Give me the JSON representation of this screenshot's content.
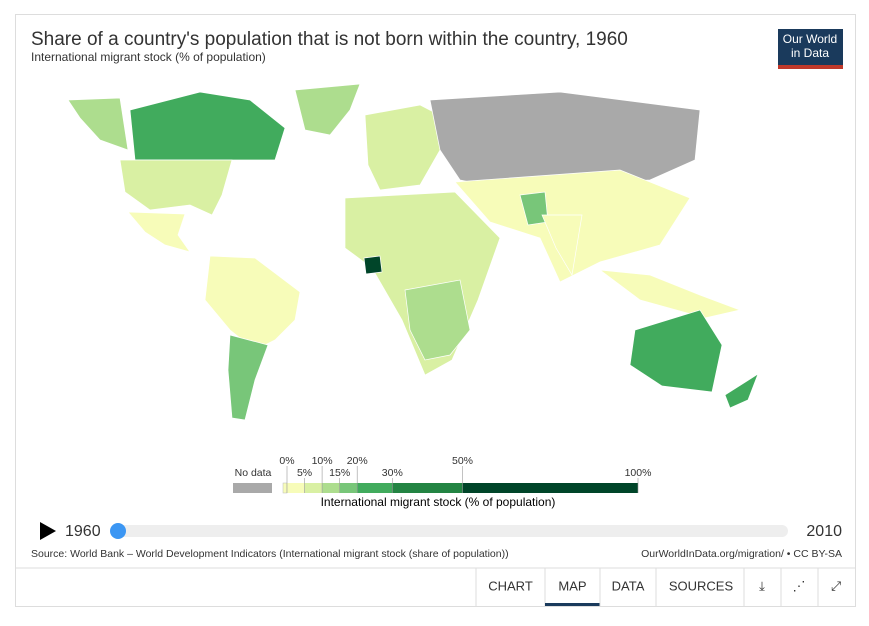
{
  "header": {
    "title": "Share of a country's population that is not born within the country, 1960",
    "subtitle": "International migrant stock (% of population)"
  },
  "logo": [
    "Our World",
    "in Data"
  ],
  "legend": {
    "no_data": "No data",
    "title": "International migrant stock (% of population)",
    "ticks": [
      {
        "value": 0,
        "label": "0%"
      },
      {
        "value": 5,
        "label": "5%"
      },
      {
        "value": 10,
        "label": "10%"
      },
      {
        "value": 15,
        "label": "15%"
      },
      {
        "value": 20,
        "label": "20%"
      },
      {
        "value": 30,
        "label": "30%"
      },
      {
        "value": 50,
        "label": "50%"
      },
      {
        "value": 100,
        "label": "100%"
      }
    ],
    "colors": [
      "#f7fcb9",
      "#d9f0a3",
      "#addd8e",
      "#78c679",
      "#41ab5d",
      "#238443",
      "#004529"
    ],
    "no_data_color": "#a9a9a9"
  },
  "timeline": {
    "start": 1960,
    "end": 2010
  },
  "footer": {
    "source": "Source: World Bank – World Development Indicators (International migrant stock (share of population))",
    "license": "OurWorldInData.org/migration/ • CC BY-SA"
  },
  "tabs": [
    "CHART",
    "MAP",
    "DATA",
    "SOURCES"
  ],
  "active_tab": 1
}
